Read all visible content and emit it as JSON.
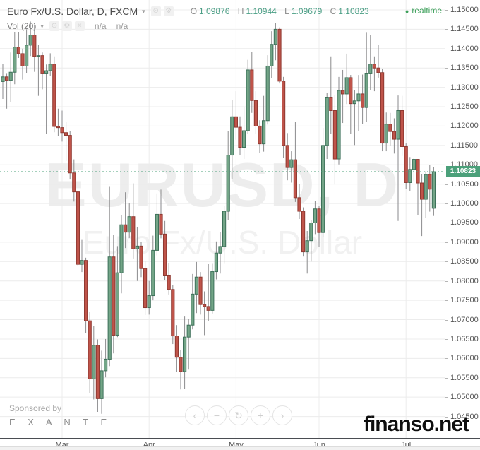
{
  "header": {
    "symbol_title": "Euro Fx/U.S. Dollar, D, FXCM",
    "ohlc": [
      {
        "label": "O",
        "value": "1.09876"
      },
      {
        "label": "H",
        "value": "1.10944"
      },
      {
        "label": "L",
        "value": "1.09679"
      },
      {
        "label": "C",
        "value": "1.10823"
      }
    ],
    "realtime_label": "realtime",
    "indicator": {
      "name": "Vol (20)",
      "value1": "n/a",
      "value2": "n/a"
    }
  },
  "icons": {
    "caret": "▾",
    "eye": "⊙",
    "gear": "⚙",
    "close": "×",
    "dot": "●"
  },
  "watermark": {
    "line1": "EURUSD, D",
    "line2": "Euro Fx/U.S. Dollar"
  },
  "sponsor": {
    "prefix": "Sponsored by",
    "name": "E X A N T E"
  },
  "site_logo": "finanso.net",
  "nav": {
    "buttons": [
      {
        "name": "scroll-left-button",
        "glyph": "‹"
      },
      {
        "name": "zoom-out-button",
        "glyph": "−"
      },
      {
        "name": "reset-chart-button",
        "glyph": "↻"
      },
      {
        "name": "zoom-in-button",
        "glyph": "+"
      },
      {
        "name": "scroll-right-button",
        "glyph": "›"
      }
    ]
  },
  "colors": {
    "up_fill": "#73a587",
    "up_border": "#3d7059",
    "down_fill": "#bf544a",
    "down_border": "#8f3a32",
    "wick": "#8a8a8c",
    "grid": "#ececec",
    "last_price": "#4ba07a",
    "axis_text": "#555555"
  },
  "chart_data": {
    "type": "candlestick",
    "title": "Euro Fx/U.S. Dollar",
    "symbol": "EURUSD",
    "interval": "D",
    "exchange": "FXCM",
    "last_price": "1.10823",
    "grid": true,
    "legend_position": "none",
    "y_axis": {
      "view_max": 1.15255,
      "view_min": 1.03945,
      "tick_step": 0.005
    },
    "y_ticks": [
      "1.15000",
      "1.14500",
      "1.14000",
      "1.13500",
      "1.13000",
      "1.12500",
      "1.12000",
      "1.11500",
      "1.11000",
      "1.10500",
      "1.10000",
      "1.09500",
      "1.09000",
      "1.08500",
      "1.08000",
      "1.07500",
      "1.07000",
      "1.06500",
      "1.06000",
      "1.05500",
      "1.05000",
      "1.04500"
    ],
    "x_axis_months": [
      {
        "label": "Mar",
        "index": 15
      },
      {
        "label": "Apr",
        "index": 37
      },
      {
        "label": "May",
        "index": 59
      },
      {
        "label": "Jun",
        "index": 80
      },
      {
        "label": "Jul",
        "index": 102
      }
    ],
    "candles_format": [
      "open",
      "high",
      "low",
      "close"
    ],
    "candles": [
      [
        1.1315,
        1.136,
        1.127,
        1.1327
      ],
      [
        1.1327,
        1.1335,
        1.1245,
        1.1318
      ],
      [
        1.1318,
        1.139,
        1.1262,
        1.1339
      ],
      [
        1.1339,
        1.1443,
        1.1308,
        1.1404
      ],
      [
        1.1404,
        1.1442,
        1.1376,
        1.1387
      ],
      [
        1.1387,
        1.14,
        1.132,
        1.1355
      ],
      [
        1.1355,
        1.145,
        1.1336,
        1.1409
      ],
      [
        1.1409,
        1.147,
        1.1381,
        1.1435
      ],
      [
        1.1435,
        1.146,
        1.134,
        1.138
      ],
      [
        1.138,
        1.141,
        1.1278,
        1.1382
      ],
      [
        1.1382,
        1.139,
        1.1295,
        1.1335
      ],
      [
        1.1335,
        1.1359,
        1.118,
        1.1343
      ],
      [
        1.1343,
        1.1388,
        1.1329,
        1.136
      ],
      [
        1.136,
        1.138,
        1.1184,
        1.1199
      ],
      [
        1.1199,
        1.1245,
        1.1175,
        1.1196
      ],
      [
        1.1196,
        1.124,
        1.116,
        1.1183
      ],
      [
        1.1183,
        1.121,
        1.111,
        1.1176
      ],
      [
        1.1176,
        1.1187,
        1.1062,
        1.1079
      ],
      [
        1.1079,
        1.1114,
        1.1005,
        1.103
      ],
      [
        1.103,
        1.1033,
        1.0839,
        1.0843
      ],
      [
        1.0843,
        1.0906,
        1.0823,
        1.0853
      ],
      [
        1.0853,
        1.086,
        1.0666,
        1.0697
      ],
      [
        1.0697,
        1.072,
        1.051,
        1.0547
      ],
      [
        1.0547,
        1.0684,
        1.0494,
        1.0634
      ],
      [
        1.0634,
        1.0649,
        1.0462,
        1.0496
      ],
      [
        1.0496,
        1.062,
        1.0457,
        1.0568
      ],
      [
        1.0568,
        1.065,
        1.0551,
        1.0598
      ],
      [
        1.0598,
        1.1043,
        1.058,
        1.0862
      ],
      [
        1.0862,
        1.0918,
        1.0613,
        1.066
      ],
      [
        1.066,
        1.089,
        1.0655,
        1.0821
      ],
      [
        1.0821,
        1.0971,
        1.0768,
        1.0945
      ],
      [
        1.0945,
        1.1029,
        1.0885,
        1.0926
      ],
      [
        1.0926,
        1.1,
        1.0911,
        1.0966
      ],
      [
        1.0966,
        1.1052,
        1.0858,
        1.0883
      ],
      [
        1.0883,
        1.094,
        1.08,
        1.089
      ],
      [
        1.089,
        1.09,
        1.081,
        1.0832
      ],
      [
        1.0832,
        1.085,
        1.0712,
        1.0731
      ],
      [
        1.0731,
        1.08,
        1.0713,
        1.0762
      ],
      [
        1.0762,
        1.0917,
        1.075,
        1.0879
      ],
      [
        1.0879,
        1.1026,
        1.0866,
        1.0972
      ],
      [
        1.0972,
        1.1036,
        1.091,
        1.0921
      ],
      [
        1.0921,
        1.0955,
        1.0803,
        1.0815
      ],
      [
        1.0815,
        1.0847,
        1.0765,
        1.0778
      ],
      [
        1.0778,
        1.0789,
        1.0637,
        1.0658
      ],
      [
        1.0658,
        1.0686,
        1.0566,
        1.0603
      ],
      [
        1.0603,
        1.0621,
        1.052,
        1.0566
      ],
      [
        1.0566,
        1.0708,
        1.0522,
        1.0655
      ],
      [
        1.0655,
        1.0701,
        1.0571,
        1.0686
      ],
      [
        1.0686,
        1.0818,
        1.0675,
        1.0766
      ],
      [
        1.0766,
        1.0849,
        1.0717,
        1.081
      ],
      [
        1.081,
        1.0823,
        1.0713,
        1.0739
      ],
      [
        1.0739,
        1.0773,
        1.066,
        1.0734
      ],
      [
        1.0734,
        1.0845,
        1.0697,
        1.0724
      ],
      [
        1.0724,
        1.0846,
        1.0716,
        1.0824
      ],
      [
        1.0824,
        1.0902,
        1.0804,
        1.0872
      ],
      [
        1.0872,
        1.0927,
        1.0819,
        1.0889
      ],
      [
        1.0889,
        1.0993,
        1.0846,
        1.098
      ],
      [
        1.098,
        1.1188,
        1.0958,
        1.1125
      ],
      [
        1.1125,
        1.1267,
        1.1063,
        1.1224
      ],
      [
        1.1224,
        1.129,
        1.1165,
        1.1197
      ],
      [
        1.1197,
        1.1225,
        1.1125,
        1.1145
      ],
      [
        1.1145,
        1.1249,
        1.1115,
        1.1188
      ],
      [
        1.1188,
        1.1371,
        1.118,
        1.1345
      ],
      [
        1.1345,
        1.1392,
        1.1234,
        1.1266
      ],
      [
        1.1266,
        1.129,
        1.1179,
        1.12
      ],
      [
        1.12,
        1.1215,
        1.1131,
        1.1154
      ],
      [
        1.1154,
        1.1278,
        1.1134,
        1.1214
      ],
      [
        1.1214,
        1.1383,
        1.1204,
        1.1355
      ],
      [
        1.1355,
        1.1445,
        1.1323,
        1.1411
      ],
      [
        1.1411,
        1.1467,
        1.137,
        1.145
      ],
      [
        1.145,
        1.1455,
        1.131,
        1.1316
      ],
      [
        1.1316,
        1.1327,
        1.1118,
        1.115
      ],
      [
        1.115,
        1.1182,
        1.106,
        1.1093
      ],
      [
        1.1093,
        1.1135,
        1.1054,
        1.1113
      ],
      [
        1.1113,
        1.121,
        1.1004,
        1.1015
      ],
      [
        1.1015,
        1.105,
        1.096,
        1.098
      ],
      [
        1.098,
        1.099,
        1.0863,
        1.0875
      ],
      [
        1.0875,
        1.0929,
        1.0819,
        1.0904
      ],
      [
        1.0904,
        1.0958,
        1.085,
        1.095
      ],
      [
        1.095,
        1.1006,
        1.0921,
        1.0986
      ],
      [
        1.0986,
        1.0993,
        1.0888,
        1.0925
      ],
      [
        1.0925,
        1.1195,
        1.0913,
        1.115
      ],
      [
        1.115,
        1.1285,
        1.1115,
        1.1273
      ],
      [
        1.1273,
        1.138,
        1.118,
        1.124
      ],
      [
        1.124,
        1.128,
        1.1049,
        1.1115
      ],
      [
        1.1115,
        1.1327,
        1.1101,
        1.1292
      ],
      [
        1.1292,
        1.1345,
        1.1208,
        1.1283
      ],
      [
        1.1283,
        1.1387,
        1.1257,
        1.1325
      ],
      [
        1.1325,
        1.1332,
        1.1179,
        1.1258
      ],
      [
        1.1258,
        1.1292,
        1.1151,
        1.1265
      ],
      [
        1.1265,
        1.1332,
        1.1188,
        1.1283
      ],
      [
        1.1283,
        1.1333,
        1.1205,
        1.1248
      ],
      [
        1.1248,
        1.1441,
        1.121,
        1.1335
      ],
      [
        1.1335,
        1.1436,
        1.1292,
        1.136
      ],
      [
        1.136,
        1.138,
        1.129,
        1.135
      ],
      [
        1.135,
        1.141,
        1.1325,
        1.1338
      ],
      [
        1.1338,
        1.1348,
        1.1135,
        1.1156
      ],
      [
        1.1156,
        1.1235,
        1.1135,
        1.1205
      ],
      [
        1.1205,
        1.1234,
        1.115,
        1.1186
      ],
      [
        1.1186,
        1.122,
        1.1129,
        1.1166
      ],
      [
        1.1166,
        1.1279,
        1.0955,
        1.124
      ],
      [
        1.124,
        1.1278,
        1.1123,
        1.1147
      ],
      [
        1.1147,
        1.1155,
        1.1037,
        1.1054
      ],
      [
        1.1054,
        1.112,
        1.1033,
        1.1088
      ],
      [
        1.1088,
        1.1117,
        1.1058,
        1.1114
      ],
      [
        1.1114,
        1.1115,
        1.097,
        1.1053
      ],
      [
        1.1053,
        1.1075,
        1.0916,
        1.1011
      ],
      [
        1.1011,
        1.1083,
        1.0962,
        1.1075
      ],
      [
        1.1075,
        1.1099,
        1.0979,
        1.1037
      ],
      [
        1.09876,
        1.10944,
        1.09679,
        1.10823
      ]
    ]
  }
}
